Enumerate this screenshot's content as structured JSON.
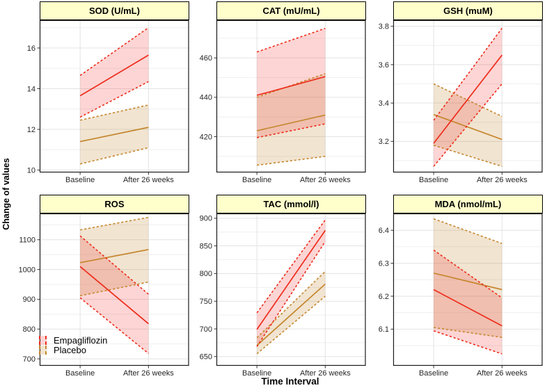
{
  "figure": {
    "y_axis_label": "Change of values",
    "x_axis_label": "Time Interval",
    "x_categories": [
      "Baseline",
      "After 26 weeks"
    ],
    "strip_bg": "#FFFFCC",
    "grid_major_color": "#E3E3E3",
    "grid_minor_color": "#EFEFEF",
    "border_color": "#1A1A1A"
  },
  "legend": {
    "items": [
      {
        "label": "Empagliflozin",
        "color": "#EE2C1C",
        "fill": "rgba(240,45,40,0.20)"
      },
      {
        "label": "Placebo",
        "color": "#C5872F",
        "fill": "rgba(190,130,45,0.22)"
      }
    ]
  },
  "chart_data": [
    {
      "type": "line",
      "title": "SOD (U/mL)",
      "ylim": [
        9.9,
        17.35
      ],
      "yticks": [
        10,
        12,
        14,
        16
      ],
      "yminor": [
        11,
        13,
        15,
        17
      ],
      "series": [
        {
          "name": "Empagliflozin",
          "mean": [
            13.65,
            15.65
          ],
          "upper": [
            14.65,
            17.0
          ],
          "lower": [
            12.6,
            14.35
          ]
        },
        {
          "name": "Placebo",
          "mean": [
            11.4,
            12.1
          ],
          "upper": [
            12.45,
            13.2
          ],
          "lower": [
            10.3,
            11.1
          ]
        }
      ]
    },
    {
      "type": "line",
      "title": "CAT (mU/mL)",
      "ylim": [
        402,
        479
      ],
      "yticks": [
        420,
        440,
        460
      ],
      "yminor": [
        410,
        430,
        450,
        470
      ],
      "series": [
        {
          "name": "Empagliflozin",
          "mean": [
            441,
            450.5
          ],
          "upper": [
            463,
            475
          ],
          "lower": [
            419.5,
            426.5
          ]
        },
        {
          "name": "Placebo",
          "mean": [
            423,
            431
          ],
          "upper": [
            440,
            452
          ],
          "lower": [
            405.5,
            410
          ]
        }
      ]
    },
    {
      "type": "line",
      "title": "GSH (muM)",
      "ylim": [
        3.04,
        3.83
      ],
      "yticks": [
        3.2,
        3.4,
        3.6,
        3.8
      ],
      "yminor": [
        3.1,
        3.3,
        3.5,
        3.7
      ],
      "series": [
        {
          "name": "Empagliflozin",
          "mean": [
            3.19,
            3.65
          ],
          "upper": [
            3.31,
            3.79
          ],
          "lower": [
            3.07,
            3.5
          ]
        },
        {
          "name": "Placebo",
          "mean": [
            3.34,
            3.21
          ],
          "upper": [
            3.5,
            3.33
          ],
          "lower": [
            3.18,
            3.07
          ]
        }
      ]
    },
    {
      "type": "line",
      "title": "ROS",
      "ylim": [
        678,
        1187
      ],
      "yticks": [
        700,
        800,
        900,
        1000,
        1100
      ],
      "yminor": [
        750,
        850,
        950,
        1050,
        1150
      ],
      "series": [
        {
          "name": "Empagliflozin",
          "mean": [
            1010,
            818
          ],
          "upper": [
            1113,
            917
          ],
          "lower": [
            905,
            718
          ]
        },
        {
          "name": "Placebo",
          "mean": [
            1023,
            1067
          ],
          "upper": [
            1133,
            1175
          ],
          "lower": [
            912,
            958
          ]
        }
      ]
    },
    {
      "type": "line",
      "title": "TAC (mmol/l)",
      "ylim": [
        634,
        908
      ],
      "yticks": [
        650,
        700,
        750,
        800,
        850,
        900
      ],
      "yminor": [
        675,
        725,
        775,
        825,
        875
      ],
      "series": [
        {
          "name": "Empagliflozin",
          "mean": [
            699,
            878
          ],
          "upper": [
            729,
            897
          ],
          "lower": [
            668,
            858
          ]
        },
        {
          "name": "Placebo",
          "mean": [
            670,
            781
          ],
          "upper": [
            684,
            804
          ],
          "lower": [
            655,
            759
          ]
        }
      ]
    },
    {
      "type": "line",
      "title": "MDA (nmol/mL)",
      "ylim": [
        5.99,
        6.45
      ],
      "yticks": [
        6.1,
        6.2,
        6.3,
        6.4
      ],
      "yminor": [
        6.05,
        6.15,
        6.25,
        6.35
      ],
      "series": [
        {
          "name": "Empagliflozin",
          "mean": [
            6.22,
            6.11
          ],
          "upper": [
            6.34,
            6.195
          ],
          "lower": [
            6.095,
            6.025
          ]
        },
        {
          "name": "Placebo",
          "mean": [
            6.27,
            6.22
          ],
          "upper": [
            6.435,
            6.36
          ],
          "lower": [
            6.105,
            6.075
          ]
        }
      ]
    }
  ]
}
